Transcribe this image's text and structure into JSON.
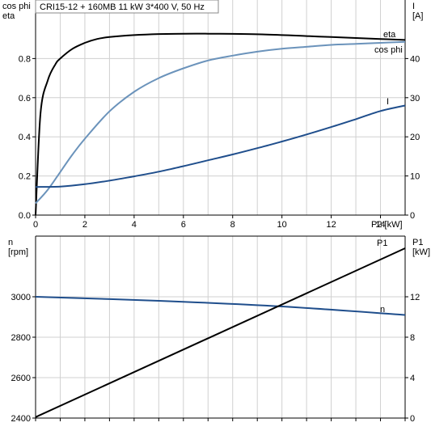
{
  "title": "CRI15-12 + 160MB   11 kW   3*400 V, 50 Hz",
  "chart_data": [
    {
      "type": "line",
      "panel": "top",
      "left_axis_label_lines": [
        "cos phi",
        "eta"
      ],
      "right_axis_label_lines": [
        "I",
        "[A]"
      ],
      "xlabel": "P2 [kW]",
      "xlim": [
        0,
        15
      ],
      "ylim_left": [
        0,
        1.0
      ],
      "ylim_right": [
        0,
        50
      ],
      "x_ticks": [
        0,
        2,
        4,
        6,
        8,
        10,
        12,
        14
      ],
      "y_ticks_left": [
        "0.0",
        "0.2",
        "0.4",
        "0.6",
        "0.8"
      ],
      "y_ticks_right": [
        "0",
        "10",
        "20",
        "30",
        "40"
      ],
      "grid": true,
      "series": [
        {
          "name": "eta",
          "axis": "left",
          "color": "#000000",
          "x": [
            0,
            0.2,
            0.5,
            0.8,
            1.0,
            1.5,
            2,
            2.5,
            3,
            4,
            5,
            6,
            7,
            8,
            9,
            10,
            11,
            12,
            13,
            14,
            15
          ],
          "y": [
            0.0,
            0.52,
            0.69,
            0.77,
            0.8,
            0.85,
            0.88,
            0.9,
            0.91,
            0.92,
            0.925,
            0.927,
            0.927,
            0.926,
            0.924,
            0.92,
            0.915,
            0.91,
            0.905,
            0.9,
            0.895
          ]
        },
        {
          "name": "cos phi",
          "axis": "left",
          "color": "#6b93bb",
          "x": [
            0,
            0.5,
            1,
            1.5,
            2,
            3,
            4,
            5,
            6,
            7,
            8,
            9,
            10,
            11,
            12,
            13,
            14,
            15
          ],
          "y": [
            0.06,
            0.13,
            0.22,
            0.31,
            0.39,
            0.53,
            0.63,
            0.7,
            0.75,
            0.79,
            0.815,
            0.835,
            0.85,
            0.86,
            0.87,
            0.875,
            0.88,
            0.885
          ]
        },
        {
          "name": "I",
          "axis": "right",
          "color": "#1f4e8c",
          "x": [
            0,
            1,
            2,
            3,
            4,
            5,
            6,
            7,
            8,
            9,
            10,
            11,
            12,
            13,
            14,
            15
          ],
          "y": [
            7.2,
            7.3,
            7.9,
            8.8,
            9.9,
            11.1,
            12.5,
            14.0,
            15.5,
            17.1,
            18.8,
            20.6,
            22.5,
            24.5,
            26.6,
            28.0
          ]
        }
      ]
    },
    {
      "type": "line",
      "panel": "bottom",
      "left_axis_label_lines": [
        "n",
        "[rpm]"
      ],
      "right_axis_label_lines": [
        "P1",
        "[kW]"
      ],
      "xlim": [
        0,
        15
      ],
      "ylim_left": [
        2400,
        3200
      ],
      "ylim_right": [
        0,
        16
      ],
      "y_ticks_left": [
        "2400",
        "2600",
        "2800",
        "3000"
      ],
      "y_ticks_right": [
        "0",
        "4",
        "8",
        "12"
      ],
      "grid": true,
      "series": [
        {
          "name": "n",
          "axis": "left",
          "color": "#1f4e8c",
          "x": [
            0,
            5,
            10,
            15
          ],
          "y": [
            3000,
            2980,
            2952,
            2910
          ]
        },
        {
          "name": "P1",
          "axis": "right",
          "color": "#000000",
          "x": [
            0,
            15
          ],
          "y": [
            0.1,
            16.8
          ]
        }
      ]
    }
  ]
}
